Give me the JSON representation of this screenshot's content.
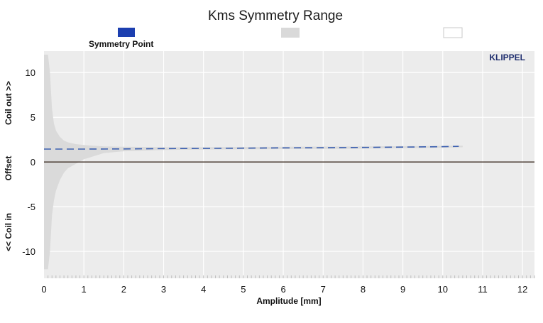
{
  "chart_data": {
    "type": "area",
    "title": "Kms Symmetry Range",
    "xlabel": "Amplitude [mm]",
    "ylabel_parts": [
      "<< Coil in",
      "Offset",
      "Coil out >>"
    ],
    "brand": "KLIPPEL",
    "xlim": [
      0,
      12.3
    ],
    "ylim": [
      -13.0,
      12.4
    ],
    "xticks": [
      0,
      1,
      2,
      3,
      4,
      5,
      6,
      7,
      8,
      9,
      10,
      11,
      12
    ],
    "yticks": [
      -10,
      -5,
      0,
      5,
      10
    ],
    "grid": true,
    "legend": [
      {
        "label": "Symmetry Point",
        "color": "#1c3fb0"
      },
      {
        "label": "",
        "color": "#d9d9d9"
      },
      {
        "label": "",
        "color": "#ffffff"
      }
    ],
    "symmetry_point": {
      "x": [
        0.0,
        0.5,
        1.0,
        2.0,
        3.0,
        4.0,
        5.0,
        6.0,
        7.0,
        8.0,
        9.0,
        10.0,
        10.4
      ],
      "y": [
        1.45,
        1.45,
        1.45,
        1.46,
        1.5,
        1.52,
        1.55,
        1.58,
        1.6,
        1.63,
        1.67,
        1.72,
        1.75
      ]
    },
    "range_band": {
      "x": [
        0.0,
        0.1,
        0.15,
        0.2,
        0.25,
        0.3,
        0.4,
        0.5,
        0.6,
        0.8,
        1.0,
        1.5,
        2.0,
        3.0,
        4.0,
        6.0,
        8.0,
        10.0,
        10.5
      ],
      "upper": [
        12.0,
        12.0,
        10.0,
        6.0,
        4.3,
        3.5,
        2.8,
        2.4,
        2.2,
        2.0,
        1.9,
        1.75,
        1.7,
        1.65,
        1.65,
        1.7,
        1.75,
        1.8,
        1.82
      ],
      "lower": [
        -12.0,
        -12.0,
        -10.0,
        -6.0,
        -4.3,
        -3.2,
        -2.0,
        -1.2,
        -0.7,
        -0.2,
        0.3,
        1.0,
        1.2,
        1.35,
        1.4,
        1.45,
        1.5,
        1.6,
        1.65
      ]
    },
    "colors": {
      "band": "#dadada",
      "symmetry_line": "#3b5fb0",
      "zero_line": "#3a2a20",
      "grid": "#ffffff",
      "plot_bg": "#ececec",
      "axis_ticks": "#bdbdbd"
    }
  }
}
